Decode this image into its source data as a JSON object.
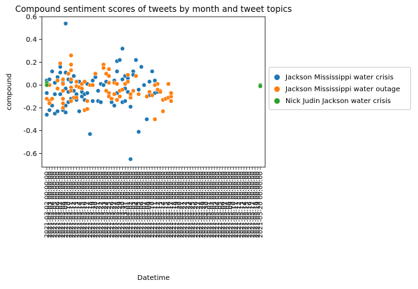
{
  "chart_data": {
    "type": "scatter",
    "title": "Compound sentiment scores of tweets by month and tweet topics",
    "xlabel": "Datetime",
    "ylabel": "compound",
    "ylim": [
      -0.72,
      0.6
    ],
    "yticks": [
      "-0.6",
      "-0.4",
      "-0.2",
      "0.0",
      "0.2",
      "0.4",
      "0.6"
    ],
    "ytick_values": [
      -0.6,
      -0.4,
      -0.2,
      0.0,
      0.2,
      0.4,
      0.6
    ],
    "x_category_count": 80,
    "x_tick_labels": [
      "2021-03-02 00:00:00",
      "2021-03-03 00:00:00",
      "2021-03-04 00:00:00",
      "2021-03-05 00:00:00",
      "2021-03-06 00:00:00",
      "2021-03-07 00:00:00",
      "2021-03-08 00:00:00",
      "2021-03-09 00:00:00",
      "2021-03-10 00:00:00",
      "2021-03-11 00:00:00",
      "2021-03-12 00:00:00",
      "2021-03-13 00:00:00",
      "2021-03-14 00:00:00",
      "2021-03-15 00:00:00",
      "2021-03-16 00:00:00",
      "2021-03-17 00:00:00",
      "2021-03-18 00:00:00",
      "2021-03-19 00:00:00",
      "2021-03-20 00:00:00",
      "2021-03-21 00:00:00",
      "2021-03-22 00:00:00",
      "2021-03-23 00:00:00",
      "2021-03-24 00:00:00",
      "2021-03-25 00:00:00",
      "2021-03-26 00:00:00",
      "2021-03-27 00:00:00",
      "2021-03-28 00:00:00",
      "2021-03-29 00:00:00",
      "2021-03-30 00:00:00",
      "2021-03-31 00:00:00",
      "2021-04-01 00:00:00",
      "2021-04-02 00:00:00",
      "2021-04-03 00:00:00",
      "2021-04-04 00:00:00",
      "2021-04-05 00:00:00",
      "2021-04-06 00:00:00",
      "2021-04-07 00:00:00",
      "2021-04-08 00:00:00",
      "2021-04-09 00:00:00",
      "2021-04-10 00:00:00",
      "2021-04-11 00:00:00",
      "2021-04-12 00:00:00",
      "2021-04-13 00:00:00",
      "2021-04-14 00:00:00",
      "2021-04-15 00:00:00",
      "2021-04-16 00:00:00",
      "2021-04-17 00:00:00",
      "2021-04-18 00:00:00",
      "2021-04-19 00:00:00",
      "2021-04-20 00:00:00",
      "2021-04-21 00:00:00",
      "2021-04-22 00:00:00",
      "2021-04-23 00:00:00",
      "2021-04-24 00:00:00",
      "2021-04-25 00:00:00",
      "2021-04-26 00:00:00",
      "2021-04-27 00:00:00",
      "2021-04-28 00:00:00",
      "2021-04-29 00:00:00",
      "2021-04-30 00:00:00",
      "2021-05-01 00:00:00",
      "2021-05-02 00:00:00",
      "2021-05-03 00:00:00",
      "2021-05-04 00:00:00",
      "2021-05-05 00:00:00",
      "2021-05-06 00:00:00",
      "2021-05-07 00:00:00",
      "2021-05-08 00:00:00",
      "2021-05-09 00:00:00",
      "2021-05-10 00:00:00",
      "2021-05-11 00:00:00",
      "2021-05-12 00:00:00",
      "2021-05-13 00:00:00",
      "2021-05-14 00:00:00",
      "2021-05-15 00:00:00",
      "2021-05-16 00:00:00",
      "2021-05-17 00:00:00",
      "2021-05-18 00:00:00",
      "2021-05-19 00:00:00",
      "2021-05-20 00:00:00"
    ],
    "legend_position": "outside right",
    "series": [
      {
        "name": "Jackson Mississippi water crisis",
        "color": "#1f77b4",
        "points": [
          [
            0,
            -0.26
          ],
          [
            0,
            -0.07
          ],
          [
            0,
            0.04
          ],
          [
            0,
            -0.12
          ],
          [
            1,
            -0.22
          ],
          [
            1,
            0.05
          ],
          [
            2,
            -0.18
          ],
          [
            2,
            0.12
          ],
          [
            3,
            -0.25
          ],
          [
            3,
            0.02
          ],
          [
            3,
            -0.08
          ],
          [
            4,
            0.07
          ],
          [
            4,
            -0.23
          ],
          [
            5,
            0.11
          ],
          [
            5,
            0.16
          ],
          [
            5,
            -0.08
          ],
          [
            6,
            0.02
          ],
          [
            6,
            -0.22
          ],
          [
            7,
            0.54
          ],
          [
            7,
            -0.24
          ],
          [
            7,
            0.11
          ],
          [
            7,
            -0.03
          ],
          [
            7,
            -0.18
          ],
          [
            8,
            0.05
          ],
          [
            8,
            -0.15
          ],
          [
            8,
            -0.06
          ],
          [
            9,
            0.03
          ],
          [
            9,
            -0.12
          ],
          [
            10,
            0.08
          ],
          [
            10,
            -0.05
          ],
          [
            11,
            -0.13
          ],
          [
            11,
            -0.08
          ],
          [
            12,
            0.03
          ],
          [
            12,
            -0.23
          ],
          [
            13,
            -0.06
          ],
          [
            13,
            -0.1
          ],
          [
            14,
            -0.08
          ],
          [
            14,
            -0.13
          ],
          [
            15,
            -0.07
          ],
          [
            15,
            0.01
          ],
          [
            16,
            -0.43
          ],
          [
            17,
            0.04
          ],
          [
            17,
            -0.14
          ],
          [
            18,
            0.07
          ],
          [
            19,
            -0.05
          ],
          [
            19,
            -0.14
          ],
          [
            20,
            -0.15
          ],
          [
            20,
            0.01
          ],
          [
            21,
            0.0
          ],
          [
            22,
            0.03
          ],
          [
            23,
            -0.1
          ],
          [
            24,
            -0.15
          ],
          [
            25,
            0.04
          ],
          [
            25,
            -0.18
          ],
          [
            26,
            0.21
          ],
          [
            26,
            0.12
          ],
          [
            26,
            -0.07
          ],
          [
            27,
            0.22
          ],
          [
            28,
            0.32
          ],
          [
            28,
            0.05
          ],
          [
            28,
            -0.15
          ],
          [
            29,
            -0.14
          ],
          [
            29,
            -0.03
          ],
          [
            29,
            0.08
          ],
          [
            30,
            0.06
          ],
          [
            30,
            -0.06
          ],
          [
            31,
            -0.19
          ],
          [
            31,
            -0.65
          ],
          [
            32,
            0.12
          ],
          [
            32,
            0.09
          ],
          [
            33,
            0.22
          ],
          [
            34,
            -0.41
          ],
          [
            34,
            -0.04
          ],
          [
            35,
            0.16
          ],
          [
            36,
            0.0
          ],
          [
            37,
            -0.3
          ],
          [
            38,
            0.03
          ],
          [
            38,
            -0.09
          ],
          [
            39,
            0.12
          ],
          [
            40,
            -0.07
          ],
          [
            40,
            0.04
          ],
          [
            41,
            -0.06
          ]
        ]
      },
      {
        "name": "Jackson Mississippi water outage",
        "color": "#ff7f0e",
        "points": [
          [
            0,
            -0.12
          ],
          [
            1,
            -0.14
          ],
          [
            1,
            -0.16
          ],
          [
            1,
            0.0
          ],
          [
            2,
            -0.12
          ],
          [
            4,
            0.04
          ],
          [
            4,
            -0.03
          ],
          [
            5,
            0.19
          ],
          [
            6,
            0.05
          ],
          [
            6,
            -0.05
          ],
          [
            6,
            -0.12
          ],
          [
            6,
            -0.16
          ],
          [
            6,
            -0.2
          ],
          [
            6,
            0.01
          ],
          [
            8,
            0.1
          ],
          [
            9,
            0.26
          ],
          [
            9,
            0.18
          ],
          [
            9,
            0.13
          ],
          [
            9,
            0.05
          ],
          [
            9,
            -0.02
          ],
          [
            9,
            -0.05
          ],
          [
            9,
            -0.14
          ],
          [
            10,
            -0.11
          ],
          [
            11,
            -0.11
          ],
          [
            11,
            0.03
          ],
          [
            11,
            -0.01
          ],
          [
            12,
            -0.02
          ],
          [
            13,
            0.01
          ],
          [
            13,
            -0.03
          ],
          [
            14,
            -0.22
          ],
          [
            14,
            0.03
          ],
          [
            15,
            -0.14
          ],
          [
            15,
            -0.21
          ],
          [
            16,
            0.0
          ],
          [
            17,
            0.0
          ],
          [
            18,
            0.1
          ],
          [
            21,
            0.18
          ],
          [
            21,
            0.15
          ],
          [
            22,
            -0.05
          ],
          [
            22,
            0.1
          ],
          [
            23,
            0.14
          ],
          [
            23,
            0.08
          ],
          [
            23,
            0.02
          ],
          [
            23,
            -0.07
          ],
          [
            23,
            -0.1
          ],
          [
            24,
            -0.12
          ],
          [
            25,
            0.02
          ],
          [
            25,
            -0.08
          ],
          [
            26,
            0.01
          ],
          [
            26,
            -0.13
          ],
          [
            27,
            -0.05
          ],
          [
            27,
            -0.1
          ],
          [
            28,
            -0.04
          ],
          [
            29,
            0.01
          ],
          [
            30,
            0.09
          ],
          [
            30,
            0.03
          ],
          [
            31,
            -0.11
          ],
          [
            31,
            -0.08
          ],
          [
            32,
            -0.05
          ],
          [
            33,
            0.08
          ],
          [
            34,
            -0.08
          ],
          [
            37,
            -0.1
          ],
          [
            38,
            -0.06
          ],
          [
            39,
            -0.09
          ],
          [
            40,
            -0.3
          ],
          [
            41,
            0.01
          ],
          [
            42,
            -0.05
          ],
          [
            43,
            -0.23
          ],
          [
            43,
            -0.13
          ],
          [
            44,
            -0.12
          ],
          [
            45,
            -0.11
          ],
          [
            45,
            0.01
          ],
          [
            46,
            -0.1
          ],
          [
            46,
            -0.07
          ],
          [
            46,
            -0.14
          ],
          [
            40,
            0.0
          ],
          [
            41,
            -0.04
          ],
          [
            42,
            -0.06
          ]
        ]
      },
      {
        "name": "Nick Judin Jackson water crisis",
        "color": "#2ca02c",
        "points": [
          [
            0,
            0.02
          ],
          [
            0,
            0.0
          ],
          [
            79,
            0.0
          ],
          [
            79,
            -0.01
          ]
        ]
      }
    ]
  }
}
